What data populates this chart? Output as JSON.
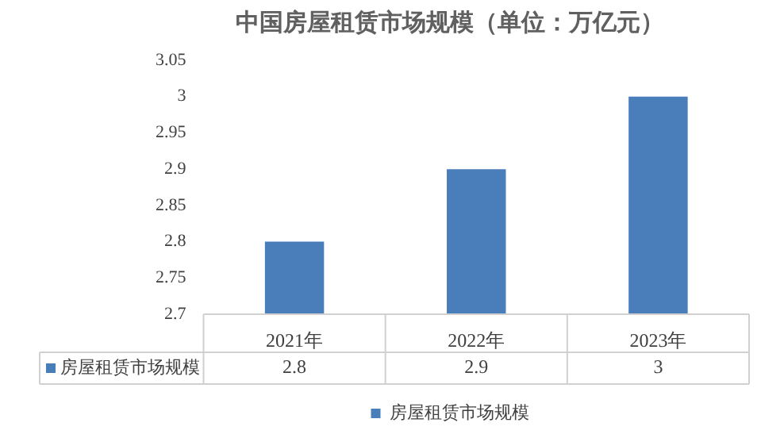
{
  "chart_data": {
    "type": "bar",
    "title": "中国房屋租赁市场规模（单位：万亿元）",
    "categories": [
      "2021年",
      "2022年",
      "2023年"
    ],
    "series": [
      {
        "name": "房屋租赁市场规模",
        "color": "#4a7ebb",
        "values": [
          2.8,
          2.9,
          3
        ]
      }
    ],
    "ylim": [
      2.7,
      3.05
    ],
    "yticks": [
      2.7,
      2.75,
      2.8,
      2.85,
      2.9,
      2.95,
      3,
      3.05
    ],
    "grid": false,
    "legend": "bottom",
    "data_labels": true
  }
}
